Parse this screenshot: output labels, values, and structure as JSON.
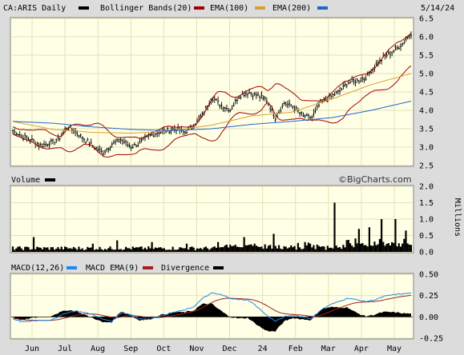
{
  "header": {
    "symbol": "CA:ARIS Daily",
    "date": "5/14/24",
    "legend": [
      {
        "label": "Bollinger Bands(20)",
        "color": "#a00000"
      },
      {
        "label": "EMA(100)",
        "color": "#d9a030"
      },
      {
        "label": "EMA(200)",
        "color": "#2266cc"
      }
    ]
  },
  "colors": {
    "price_bar": "#000000",
    "bollinger": "#a00000",
    "ema100": "#d9a030",
    "ema200": "#2266cc",
    "panel_bg": "#ffffe6",
    "grid": "#e2e2b8",
    "macd": "#2288ee",
    "macd_ema": "#a02020"
  },
  "volume_panel": {
    "title": "Volume",
    "unit_label": "Millions",
    "watermark": "©BigCharts.com"
  },
  "macd_panel": {
    "title": "MACD(12,26)",
    "ema_label": "MACD EMA(9)",
    "divergence_label": "Divergence"
  },
  "chart_data": [
    {
      "type": "ohlc",
      "panel": "price",
      "ylim": [
        2.5,
        6.5
      ],
      "yticks": [
        "2.5",
        "3.0",
        "3.5",
        "4.0",
        "4.5",
        "5.0",
        "5.5",
        "6.0",
        "6.5"
      ],
      "x_labels": [
        "Jun",
        "Jul",
        "Aug",
        "Sep",
        "Oct",
        "Nov",
        "Dec",
        "24",
        "Feb",
        "Mar",
        "Apr",
        "May"
      ],
      "close_weekly": [
        3.45,
        3.3,
        3.2,
        3.05,
        3.1,
        3.2,
        3.55,
        3.4,
        3.2,
        3.0,
        2.85,
        3.1,
        3.2,
        3.0,
        3.1,
        3.3,
        3.4,
        3.45,
        3.5,
        3.4,
        3.6,
        3.9,
        4.35,
        4.15,
        4.0,
        4.4,
        4.5,
        4.4,
        4.3,
        3.8,
        4.2,
        4.1,
        3.85,
        3.8,
        4.2,
        4.35,
        4.5,
        4.75,
        4.8,
        4.9,
        5.2,
        5.45,
        5.6,
        5.8,
        6.1
      ],
      "ema100": [
        3.7,
        3.48,
        3.4,
        3.38,
        3.45,
        3.6,
        3.85,
        3.95,
        4.3,
        4.7,
        5.0
      ],
      "ema200": [
        3.7,
        3.65,
        3.55,
        3.48,
        3.45,
        3.5,
        3.62,
        3.7,
        3.8,
        4.0,
        4.25
      ]
    },
    {
      "type": "bar",
      "panel": "volume",
      "ylim": [
        0,
        2.0
      ],
      "yticks": [
        "0.0",
        "0.5",
        "1.0",
        "1.5",
        "2.0"
      ],
      "ylabel": "Millions"
    },
    {
      "type": "line",
      "panel": "macd",
      "ylim": [
        -0.25,
        0.5
      ],
      "yticks": [
        "-0.25",
        "0.00",
        "0.25",
        "0.50"
      ],
      "series": [
        {
          "name": "MACD(12,26)",
          "color": "#2288ee"
        },
        {
          "name": "MACD EMA(9)",
          "color": "#a02020"
        },
        {
          "name": "Divergence",
          "color": "#000000"
        }
      ],
      "macd_weekly": [
        -0.02,
        -0.06,
        -0.05,
        -0.04,
        -0.04,
        0.0,
        0.05,
        0.07,
        0.05,
        0.02,
        -0.03,
        -0.05,
        0.05,
        0.03,
        -0.02,
        -0.03,
        0.0,
        0.03,
        0.06,
        0.08,
        0.12,
        0.22,
        0.28,
        0.26,
        0.22,
        0.2,
        0.2,
        0.12,
        0.02,
        -0.05,
        0.0,
        0.02,
        0.0,
        -0.02,
        0.08,
        0.14,
        0.18,
        0.22,
        0.2,
        0.18,
        0.2,
        0.24,
        0.26,
        0.27,
        0.28
      ]
    }
  ]
}
